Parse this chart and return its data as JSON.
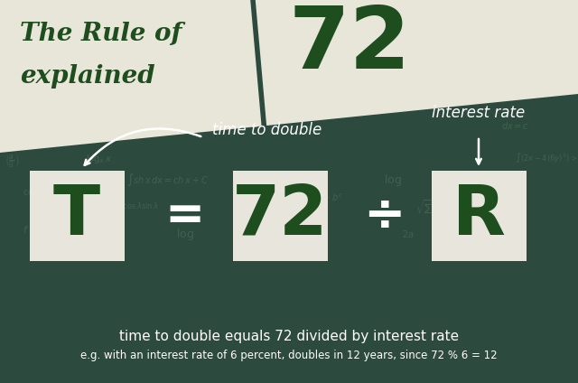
{
  "bg_color": "#2d4a3e",
  "box_color": "#e8e6dc",
  "text_green": "#1e4d1e",
  "white": "#ffffff",
  "cream": "#e8e6d8",
  "chalk_color": "#4a6e5a",
  "title_line1": "The Rule of",
  "title_line2": "explained",
  "title_number": "72",
  "label_T": "T",
  "label_72": "72",
  "label_div": "÷",
  "label_R": "R",
  "equals": "=",
  "arrow_label1": "time to double",
  "arrow_label2": "interest rate",
  "bottom_text1": "time to double equals 72 divided by interest rate",
  "bottom_text2": "e.g. with an interest rate of 6 percent, doubles in 12 years, since 72 % 6 = 12",
  "figsize": [
    6.4,
    4.24
  ],
  "dpi": 100
}
